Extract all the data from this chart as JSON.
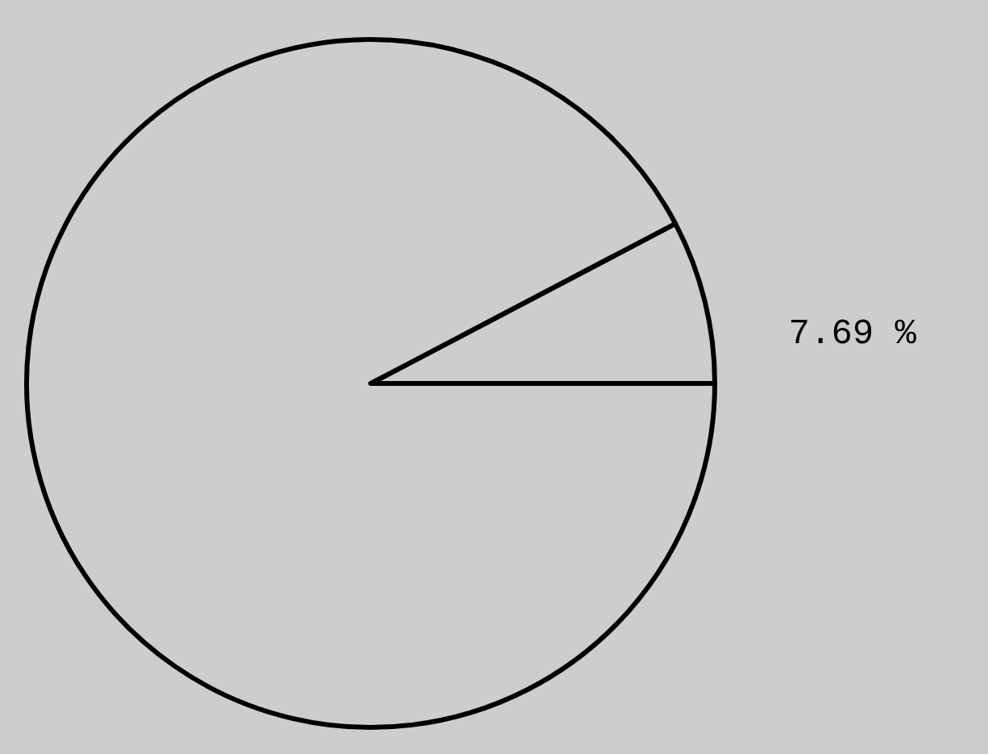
{
  "chart_data": {
    "type": "pie",
    "categories": [
      null,
      null
    ],
    "values": [
      7.69,
      92.31
    ],
    "colors": [
      "#cdcdcd",
      "#cdcdcd"
    ],
    "value_labels": [
      "7.69 %",
      null
    ]
  }
}
